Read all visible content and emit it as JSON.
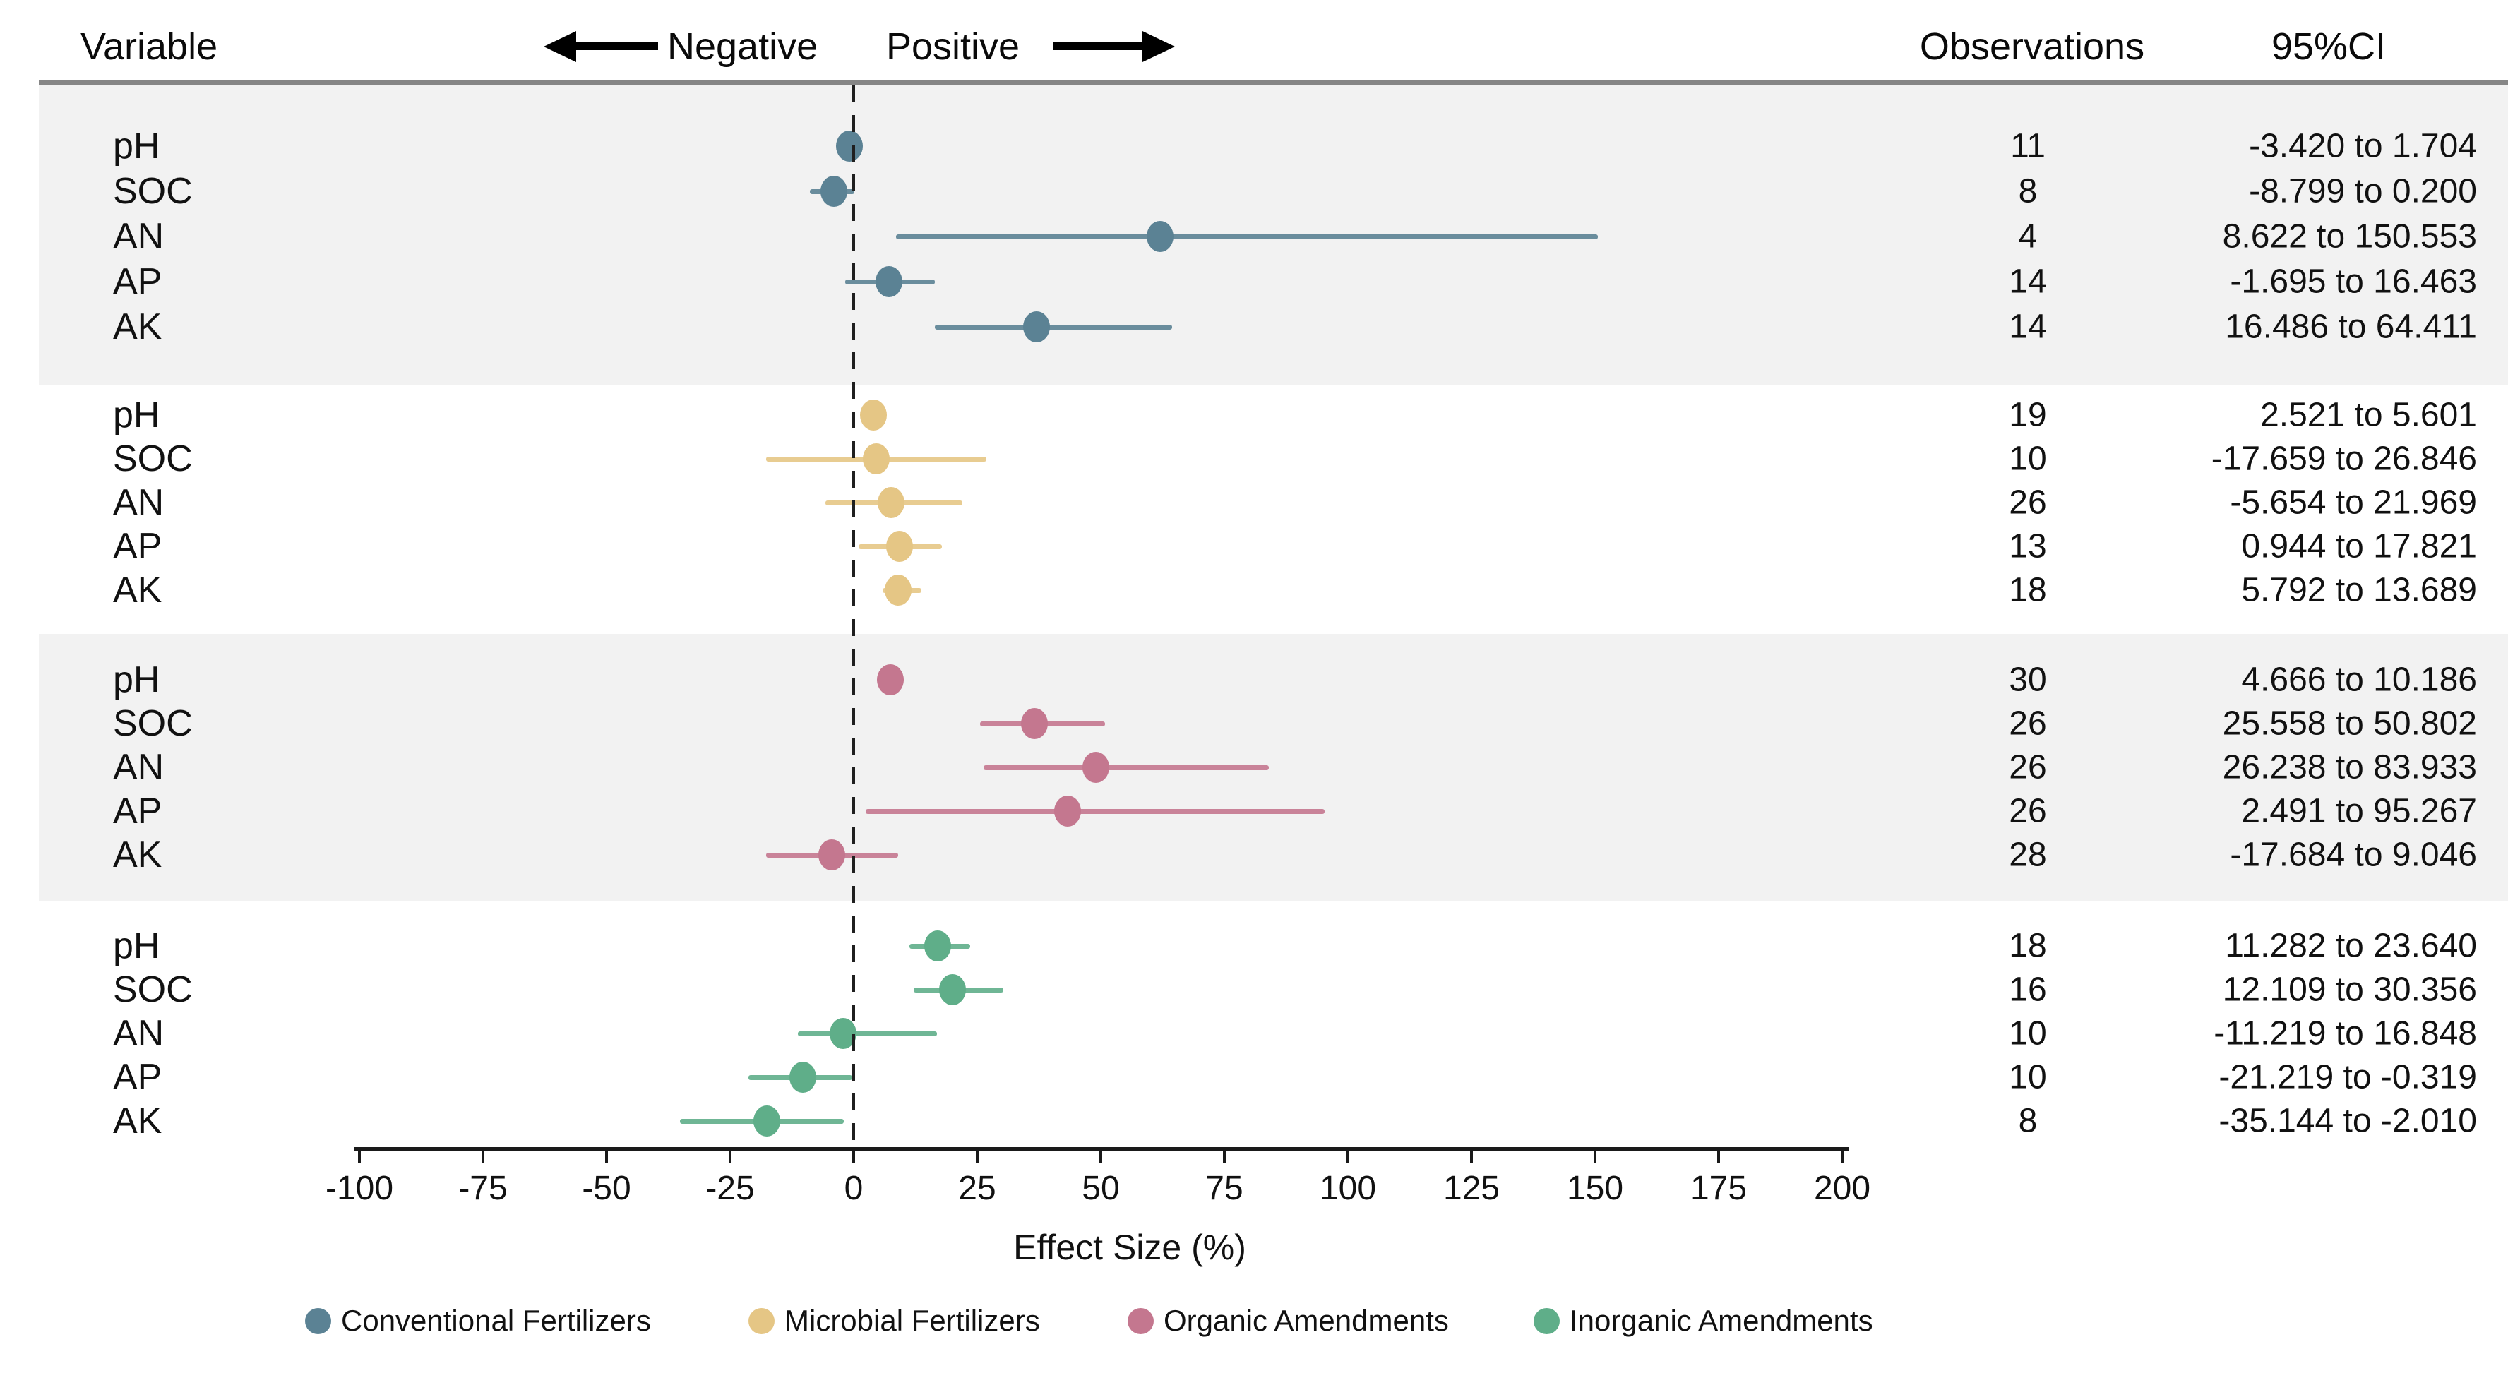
{
  "header": {
    "variable_label": "Variable",
    "negative_label": "Negative",
    "positive_label": "Positive",
    "observations_label": "Observations",
    "ci_label": "95%CI"
  },
  "chart_data": {
    "type": "scatter",
    "subtype": "forest-plot",
    "xlabel": "Effect Size (%)",
    "xlim": [
      -100,
      200
    ],
    "x_ticks": [
      -100,
      -75,
      -50,
      -25,
      0,
      25,
      50,
      75,
      100,
      125,
      150,
      175,
      200
    ],
    "zero_reference_line": 0,
    "grid": "off",
    "band_gray_color": "#f2f2f2",
    "groups": [
      {
        "name": "Conventional Fertilizers",
        "color": "#5b8294",
        "band": "gray",
        "rows": [
          {
            "variable": "pH",
            "observations": 11,
            "mean": -0.9,
            "ci_low": -3.42,
            "ci_high": 1.704,
            "ci_text": "-3.420 to 1.704"
          },
          {
            "variable": "SOC",
            "observations": 8,
            "mean": -4.0,
            "ci_low": -8.799,
            "ci_high": 0.2,
            "ci_text": "-8.799 to 0.200"
          },
          {
            "variable": "AN",
            "observations": 4,
            "mean": 62.0,
            "ci_low": 8.622,
            "ci_high": 150.553,
            "ci_text": "8.622 to 150.553"
          },
          {
            "variable": "AP",
            "observations": 14,
            "mean": 7.2,
            "ci_low": -1.695,
            "ci_high": 16.463,
            "ci_text": "-1.695 to 16.463"
          },
          {
            "variable": "AK",
            "observations": 14,
            "mean": 37.0,
            "ci_low": 16.486,
            "ci_high": 64.411,
            "ci_text": "16.486 to 64.411"
          }
        ]
      },
      {
        "name": "Microbial Fertilizers",
        "color": "#e5c685",
        "band": "white",
        "rows": [
          {
            "variable": "pH",
            "observations": 19,
            "mean": 4.0,
            "ci_low": 2.521,
            "ci_high": 5.601,
            "ci_text": "2.521 to 5.601"
          },
          {
            "variable": "SOC",
            "observations": 10,
            "mean": 4.6,
            "ci_low": -17.659,
            "ci_high": 26.846,
            "ci_text": "-17.659 to 26.846"
          },
          {
            "variable": "AN",
            "observations": 26,
            "mean": 7.5,
            "ci_low": -5.654,
            "ci_high": 21.969,
            "ci_text": "-5.654 to 21.969"
          },
          {
            "variable": "AP",
            "observations": 13,
            "mean": 9.3,
            "ci_low": 0.944,
            "ci_high": 17.821,
            "ci_text": "0.944 to 17.821"
          },
          {
            "variable": "AK",
            "observations": 18,
            "mean": 9.0,
            "ci_low": 5.792,
            "ci_high": 13.689,
            "ci_text": "5.792 to 13.689"
          }
        ]
      },
      {
        "name": "Organic Amendments",
        "color": "#c4778f",
        "band": "gray",
        "rows": [
          {
            "variable": "pH",
            "observations": 30,
            "mean": 7.4,
            "ci_low": 4.666,
            "ci_high": 10.186,
            "ci_text": "4.666 to 10.186"
          },
          {
            "variable": "SOC",
            "observations": 26,
            "mean": 36.5,
            "ci_low": 25.558,
            "ci_high": 50.802,
            "ci_text": "25.558 to 50.802"
          },
          {
            "variable": "AN",
            "observations": 26,
            "mean": 49.0,
            "ci_low": 26.238,
            "ci_high": 83.933,
            "ci_text": "26.238 to 83.933"
          },
          {
            "variable": "AP",
            "observations": 26,
            "mean": 43.3,
            "ci_low": 2.491,
            "ci_high": 95.267,
            "ci_text": "2.491 to 95.267"
          },
          {
            "variable": "AK",
            "observations": 28,
            "mean": -4.5,
            "ci_low": -17.684,
            "ci_high": 9.046,
            "ci_text": "-17.684 to 9.046"
          }
        ]
      },
      {
        "name": "Inorganic Amendments",
        "color": "#5fae89",
        "band": "white",
        "rows": [
          {
            "variable": "pH",
            "observations": 18,
            "mean": 17.0,
            "ci_low": 11.282,
            "ci_high": 23.64,
            "ci_text": "11.282 to 23.640"
          },
          {
            "variable": "SOC",
            "observations": 16,
            "mean": 20.0,
            "ci_low": 12.109,
            "ci_high": 30.356,
            "ci_text": "12.109 to 30.356"
          },
          {
            "variable": "AN",
            "observations": 10,
            "mean": -2.2,
            "ci_low": -11.219,
            "ci_high": 16.848,
            "ci_text": "-11.219 to 16.848"
          },
          {
            "variable": "AP",
            "observations": 10,
            "mean": -10.3,
            "ci_low": -21.219,
            "ci_high": -0.319,
            "ci_text": "-21.219 to -0.319"
          },
          {
            "variable": "AK",
            "observations": 8,
            "mean": -17.6,
            "ci_low": -35.144,
            "ci_high": -2.01,
            "ci_text": "-35.144 to -2.010"
          }
        ]
      }
    ]
  },
  "legend": {
    "items": [
      {
        "label": "Conventional Fertilizers",
        "color": "#5b8294"
      },
      {
        "label": "Microbial Fertilizers",
        "color": "#e5c685"
      },
      {
        "label": "Organic Amendments",
        "color": "#c4778f"
      },
      {
        "label": "Inorganic Amendments",
        "color": "#5fae89"
      }
    ]
  }
}
